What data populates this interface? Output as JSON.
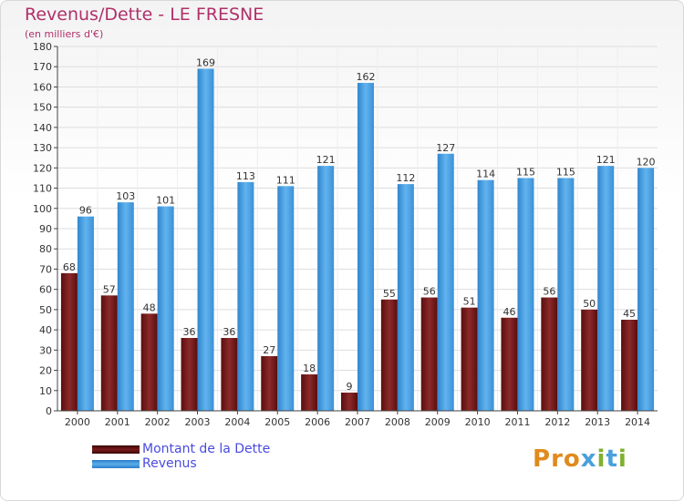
{
  "header": {
    "title": "Revenus/Dette - LE FRESNE",
    "subtitle": "(en milliers d'€)"
  },
  "legend": {
    "debt_label": "Montant de la Dette",
    "revenue_label": "Revenus"
  },
  "logo": {
    "text": "Proxiti",
    "letters": [
      "P",
      "r",
      "o",
      "x",
      "i",
      "t",
      "i"
    ],
    "colors": [
      "#e08a1e",
      "#e08a1e",
      "#e08a1e",
      "#4aa0dc",
      "#80b030",
      "#4aa0dc",
      "#80b030"
    ]
  },
  "colors": {
    "debt": "#7a1a1a",
    "revenue": "#4aa0e0",
    "title": "#b0306a"
  },
  "chart_data": {
    "type": "bar",
    "categories": [
      "2000",
      "2001",
      "2002",
      "2003",
      "2004",
      "2005",
      "2006",
      "2007",
      "2008",
      "2009",
      "2010",
      "2011",
      "2012",
      "2013",
      "2014"
    ],
    "series": [
      {
        "name": "Montant de la Dette",
        "values": [
          68,
          57,
          48,
          36,
          36,
          27,
          18,
          9,
          55,
          56,
          51,
          46,
          56,
          50,
          45
        ]
      },
      {
        "name": "Revenus",
        "values": [
          96,
          103,
          101,
          169,
          113,
          111,
          121,
          162,
          112,
          127,
          114,
          115,
          115,
          121,
          120
        ]
      }
    ],
    "title": "Revenus/Dette - LE FRESNE",
    "ylabel": "(en milliers d'€)",
    "ylim": [
      0,
      180
    ],
    "ytick_step": 10,
    "grid": true,
    "legend_position": "bottom-left"
  }
}
